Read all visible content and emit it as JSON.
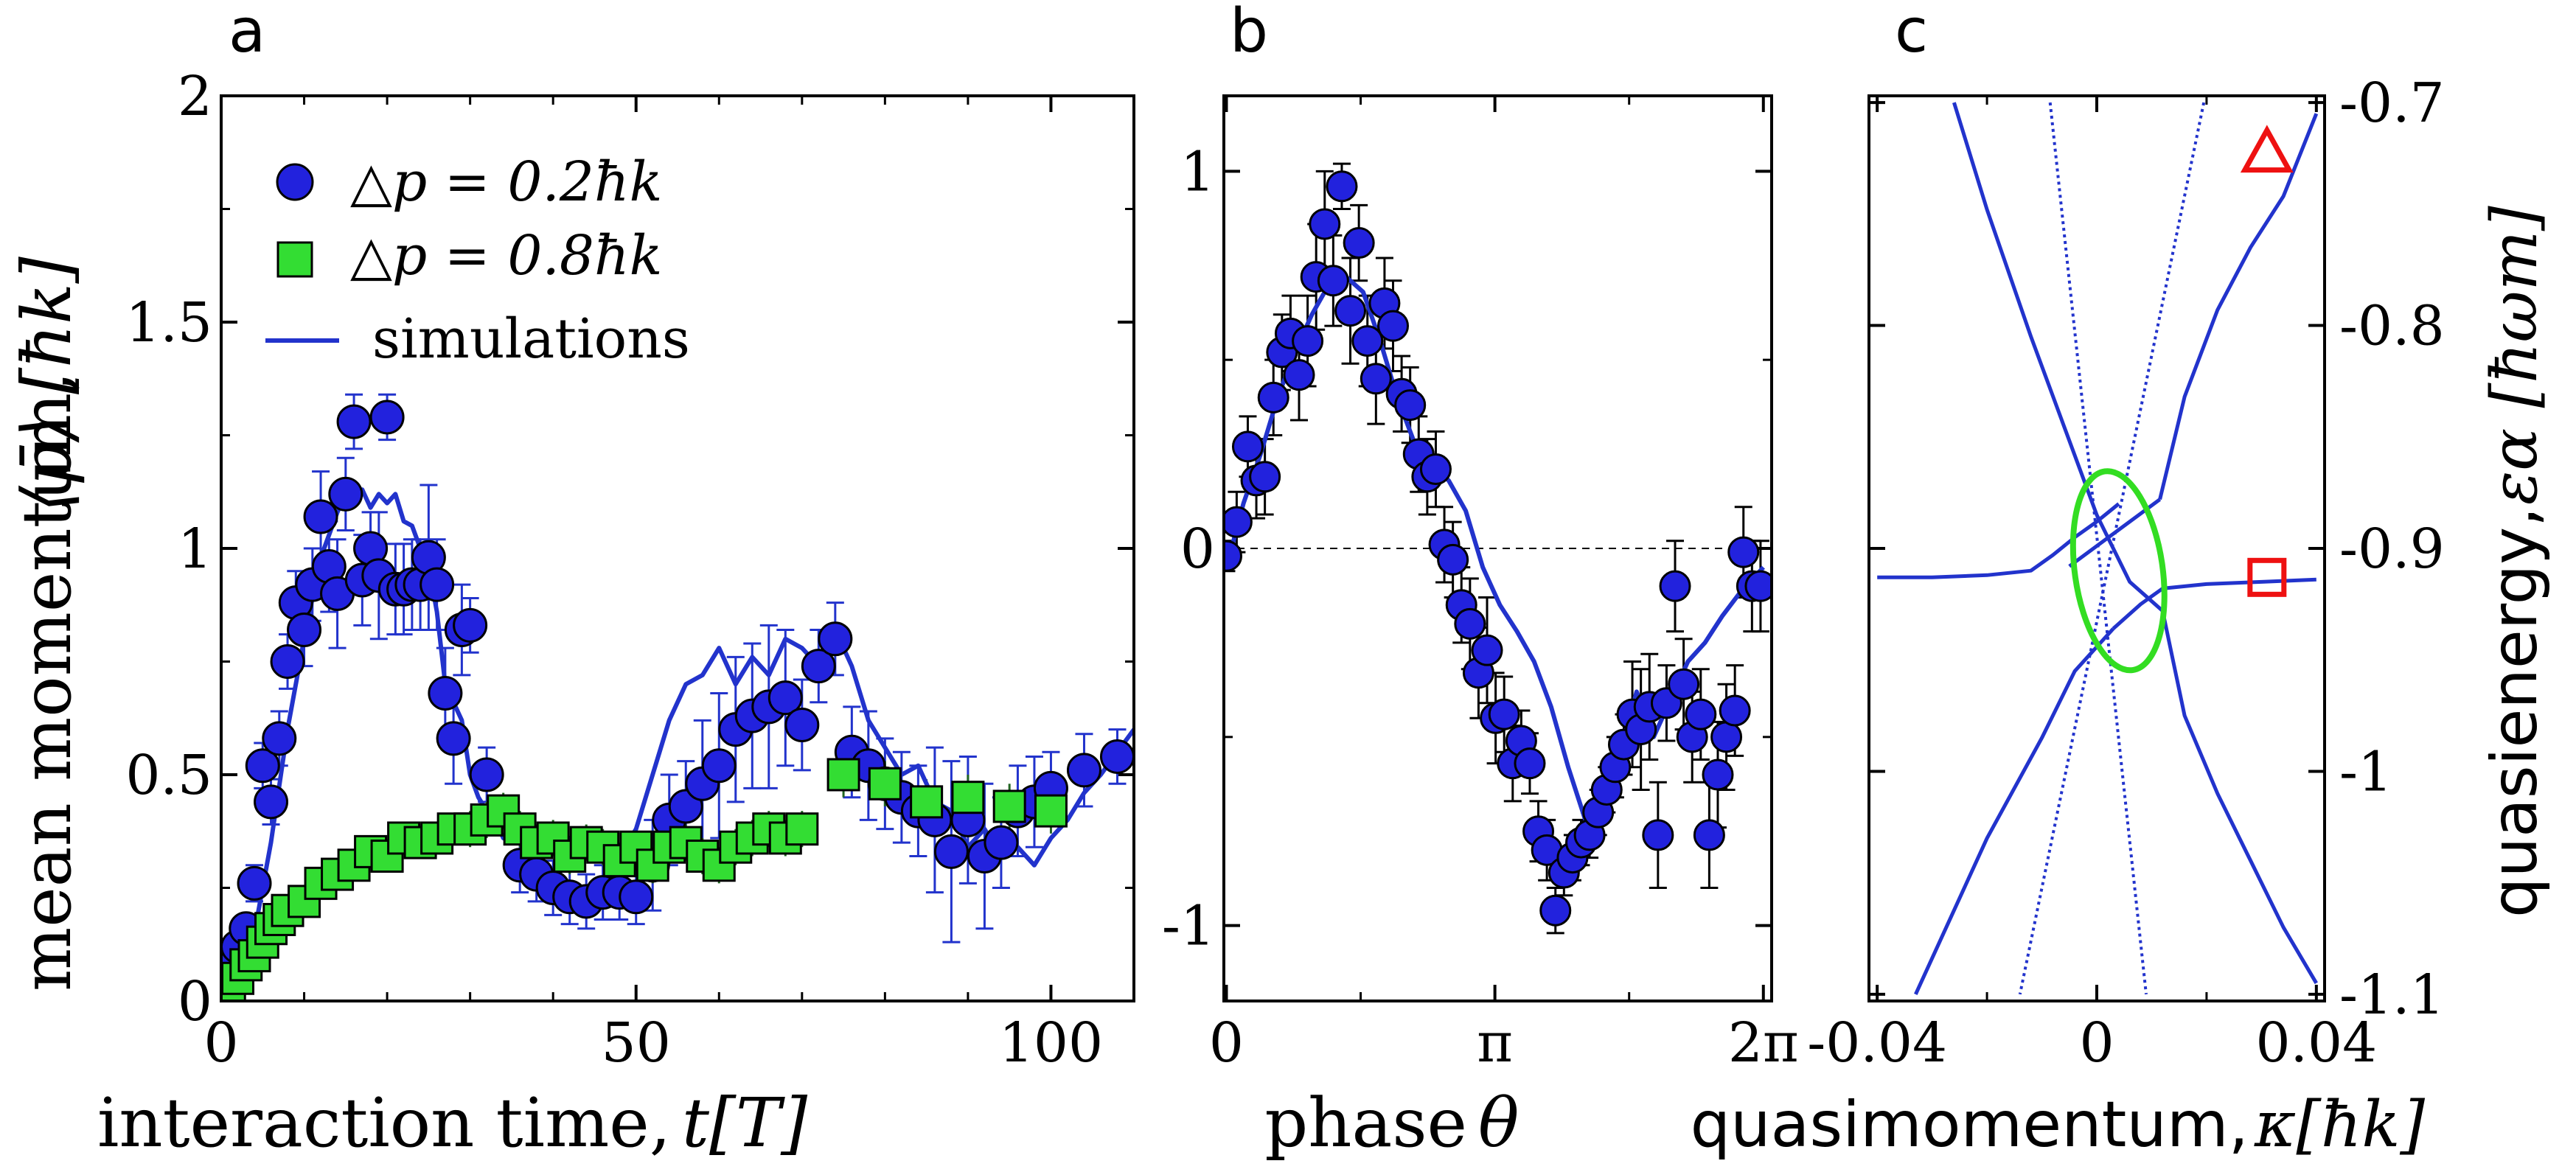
{
  "chart_data": [
    {
      "panel": "a",
      "type": "scatter",
      "panel_label": "a",
      "xlabel": "interaction time,",
      "xlabel_math": "t[T]",
      "ylabel": "mean momentum,",
      "ylabel_math": "⟨p̄⟩ [ħk]",
      "xlim": [
        0,
        110
      ],
      "ylim": [
        0,
        2
      ],
      "xticks": [
        "0",
        "50",
        "100"
      ],
      "yticks": [
        "0",
        "0.5",
        "1",
        "1.5",
        "2"
      ],
      "legend": [
        "△p = 0.2ħk",
        "△p = 0.8ħk",
        "simulations"
      ],
      "legend_position": "top-left",
      "colors": {
        "blue_marker": "#2222dd",
        "green_marker": "#33dd33",
        "line": "#2233cc"
      },
      "series": [
        {
          "name": "△p = 0.2ħk",
          "marker": "circle",
          "x": [
            0,
            1,
            2,
            3,
            4,
            5,
            6,
            7,
            8,
            9,
            10,
            11,
            12,
            13,
            14,
            15,
            16,
            17,
            18,
            19,
            20,
            21,
            22,
            23,
            24,
            25,
            26,
            27,
            28,
            29,
            30,
            32,
            36,
            38,
            40,
            42,
            44,
            46,
            48,
            50,
            52,
            54,
            56,
            58,
            60,
            62,
            64,
            66,
            68,
            70,
            72,
            74,
            76,
            78,
            80,
            82,
            84,
            86,
            88,
            90,
            92,
            94,
            96,
            98,
            100,
            104,
            108
          ],
          "y": [
            0.02,
            0.08,
            0.12,
            0.16,
            0.26,
            0.52,
            0.44,
            0.58,
            0.75,
            0.88,
            0.82,
            0.92,
            1.07,
            0.96,
            0.9,
            1.12,
            1.28,
            0.93,
            1.0,
            0.94,
            1.29,
            0.91,
            0.91,
            0.92,
            0.92,
            0.98,
            0.92,
            0.68,
            0.58,
            0.82,
            0.83,
            0.5,
            0.3,
            0.28,
            0.25,
            0.23,
            0.22,
            0.24,
            0.24,
            0.23,
            0.3,
            0.4,
            0.43,
            0.48,
            0.52,
            0.6,
            0.63,
            0.65,
            0.67,
            0.61,
            0.74,
            0.8,
            0.55,
            0.52,
            0.48,
            0.45,
            0.42,
            0.4,
            0.33,
            0.4,
            0.32,
            0.35,
            0.42,
            0.44,
            0.47,
            0.51,
            0.54
          ],
          "yerr": [
            0.02,
            0.03,
            0.03,
            0.03,
            0.04,
            0.05,
            0.05,
            0.06,
            0.06,
            0.07,
            0.08,
            0.08,
            0.1,
            0.1,
            0.12,
            0.08,
            0.06,
            0.1,
            0.08,
            0.14,
            0.05,
            0.1,
            0.1,
            0.1,
            0.1,
            0.16,
            0.1,
            0.1,
            0.1,
            0.1,
            0.06,
            0.06,
            0.06,
            0.06,
            0.06,
            0.06,
            0.06,
            0.06,
            0.06,
            0.06,
            0.1,
            0.1,
            0.1,
            0.14,
            0.16,
            0.16,
            0.16,
            0.18,
            0.15,
            0.1,
            0.08,
            0.08,
            0.1,
            0.12,
            0.1,
            0.1,
            0.1,
            0.16,
            0.2,
            0.14,
            0.16,
            0.1,
            0.1,
            0.1,
            0.08,
            0.08,
            0.06
          ]
        },
        {
          "name": "△p = 0.8ħk",
          "marker": "square",
          "x": [
            0,
            1,
            2,
            3,
            4,
            5,
            6,
            7,
            8,
            10,
            12,
            14,
            16,
            18,
            20,
            22,
            24,
            26,
            28,
            30,
            32,
            34,
            36,
            38,
            40,
            42,
            44,
            46,
            48,
            50,
            52,
            54,
            56,
            58,
            60,
            62,
            64,
            66,
            68,
            70,
            75,
            80,
            85,
            90,
            95,
            100
          ],
          "y": [
            0.0,
            0.02,
            0.05,
            0.08,
            0.1,
            0.13,
            0.16,
            0.18,
            0.2,
            0.22,
            0.26,
            0.28,
            0.3,
            0.33,
            0.32,
            0.36,
            0.35,
            0.36,
            0.38,
            0.38,
            0.4,
            0.42,
            0.38,
            0.35,
            0.36,
            0.32,
            0.35,
            0.34,
            0.31,
            0.34,
            0.3,
            0.34,
            0.35,
            0.32,
            0.3,
            0.34,
            0.36,
            0.38,
            0.36,
            0.38,
            0.5,
            0.48,
            0.44,
            0.45,
            0.43,
            0.42
          ],
          "yerr": [
            0.02,
            0.02,
            0.02,
            0.02,
            0.02,
            0.02,
            0.03,
            0.03,
            0.03,
            0.03,
            0.03,
            0.03,
            0.03,
            0.03,
            0.03,
            0.03,
            0.03,
            0.03,
            0.03,
            0.04,
            0.04,
            0.04,
            0.04,
            0.04,
            0.04,
            0.04,
            0.04,
            0.04,
            0.04,
            0.04,
            0.04,
            0.04,
            0.04,
            0.04,
            0.04,
            0.04,
            0.04,
            0.04,
            0.04,
            0.04,
            0.05,
            0.05,
            0.05,
            0.05,
            0.05,
            0.05
          ]
        },
        {
          "name": "simulations",
          "type": "line",
          "x": [
            0,
            2,
            4,
            6,
            8,
            10,
            12,
            14,
            15,
            16,
            17,
            18,
            19,
            20,
            21,
            22,
            23,
            24,
            25,
            26,
            27,
            28,
            29,
            30,
            31,
            32,
            33,
            34,
            35,
            36,
            37,
            38,
            40,
            42,
            44,
            46,
            48,
            50,
            52,
            54,
            56,
            58,
            60,
            62,
            64,
            66,
            68,
            70,
            72,
            74,
            76,
            78,
            80,
            82,
            84,
            86,
            88,
            90,
            92,
            94,
            96,
            98,
            100,
            102,
            104,
            106,
            108,
            110
          ],
          "y": [
            0.0,
            0.05,
            0.15,
            0.35,
            0.6,
            0.8,
            0.98,
            1.08,
            1.12,
            1.1,
            1.13,
            1.09,
            1.12,
            1.1,
            1.12,
            1.06,
            1.05,
            1.0,
            0.96,
            0.86,
            0.7,
            0.66,
            0.62,
            0.5,
            0.45,
            0.42,
            0.4,
            0.36,
            0.35,
            0.38,
            0.34,
            0.3,
            0.28,
            0.36,
            0.35,
            0.34,
            0.32,
            0.38,
            0.5,
            0.62,
            0.7,
            0.72,
            0.78,
            0.7,
            0.76,
            0.72,
            0.8,
            0.78,
            0.74,
            0.82,
            0.74,
            0.62,
            0.56,
            0.5,
            0.52,
            0.44,
            0.42,
            0.34,
            0.38,
            0.32,
            0.34,
            0.3,
            0.36,
            0.4,
            0.46,
            0.5,
            0.55,
            0.6
          ]
        }
      ]
    },
    {
      "panel": "b",
      "type": "scatter",
      "panel_label": "b",
      "xlabel": "phase",
      "xlabel_math": "θ",
      "xlim": [
        0,
        6.2832
      ],
      "ylim": [
        -1.2,
        1.2
      ],
      "xticks": [
        "0",
        "π",
        "2π"
      ],
      "yticks": [
        "-1",
        "0",
        "1"
      ],
      "dashed_zero_line": true,
      "series": [
        {
          "name": "data",
          "marker": "circle",
          "x": [
            0.0,
            0.12,
            0.25,
            0.35,
            0.45,
            0.55,
            0.65,
            0.75,
            0.85,
            0.95,
            1.05,
            1.15,
            1.25,
            1.35,
            1.45,
            1.55,
            1.65,
            1.75,
            1.85,
            1.95,
            2.05,
            2.15,
            2.25,
            2.35,
            2.45,
            2.55,
            2.65,
            2.75,
            2.85,
            2.95,
            3.05,
            3.15,
            3.25,
            3.35,
            3.45,
            3.55,
            3.65,
            3.75,
            3.85,
            3.95,
            4.05,
            4.15,
            4.25,
            4.35,
            4.45,
            4.55,
            4.65,
            4.75,
            4.85,
            4.95,
            5.05,
            5.15,
            5.25,
            5.35,
            5.45,
            5.55,
            5.65,
            5.75,
            5.85,
            5.95,
            6.05,
            6.15,
            6.25
          ],
          "y": [
            -0.02,
            0.07,
            0.27,
            0.18,
            0.19,
            0.4,
            0.52,
            0.57,
            0.46,
            0.55,
            0.72,
            0.86,
            0.71,
            0.96,
            0.63,
            0.81,
            0.55,
            0.45,
            0.65,
            0.59,
            0.41,
            0.38,
            0.25,
            0.19,
            0.21,
            0.01,
            -0.03,
            -0.15,
            -0.2,
            -0.33,
            -0.27,
            -0.45,
            -0.44,
            -0.57,
            -0.51,
            -0.57,
            -0.75,
            -0.8,
            -0.96,
            -0.86,
            -0.82,
            -0.78,
            -0.76,
            -0.7,
            -0.64,
            -0.58,
            -0.52,
            -0.44,
            -0.48,
            -0.42,
            -0.76,
            -0.41,
            -0.1,
            -0.36,
            -0.5,
            -0.44,
            -0.76,
            -0.6,
            -0.5,
            -0.43,
            -0.01,
            -0.1,
            -0.1
          ],
          "yerr": [
            0.04,
            0.08,
            0.08,
            0.1,
            0.1,
            0.1,
            0.1,
            0.1,
            0.12,
            0.12,
            0.14,
            0.14,
            0.12,
            0.06,
            0.14,
            0.1,
            0.12,
            0.12,
            0.12,
            0.12,
            0.1,
            0.1,
            0.1,
            0.1,
            0.1,
            0.1,
            0.1,
            0.1,
            0.12,
            0.12,
            0.14,
            0.12,
            0.1,
            0.1,
            0.08,
            0.08,
            0.08,
            0.08,
            0.06,
            0.06,
            0.06,
            0.06,
            0.06,
            0.06,
            0.06,
            0.08,
            0.08,
            0.14,
            0.16,
            0.14,
            0.14,
            0.1,
            0.12,
            0.12,
            0.12,
            0.12,
            0.14,
            0.14,
            0.14,
            0.12,
            0.12,
            0.12,
            0.12
          ]
        },
        {
          "name": "simulation",
          "type": "line",
          "x": [
            0,
            0.2,
            0.4,
            0.6,
            0.8,
            1.0,
            1.2,
            1.4,
            1.6,
            1.8,
            2.0,
            2.2,
            2.4,
            2.6,
            2.8,
            3.0,
            3.2,
            3.4,
            3.6,
            3.8,
            4.0,
            4.2,
            4.4,
            4.6,
            4.8,
            5.0,
            5.2,
            5.4,
            5.6,
            5.8,
            6.0,
            6.2832
          ],
          "y": [
            -0.05,
            0.12,
            0.25,
            0.4,
            0.52,
            0.62,
            0.7,
            0.72,
            0.68,
            0.55,
            0.4,
            0.28,
            0.22,
            0.18,
            0.1,
            -0.05,
            -0.15,
            -0.22,
            -0.3,
            -0.42,
            -0.58,
            -0.72,
            -0.7,
            -0.55,
            -0.38,
            -0.5,
            -0.4,
            -0.3,
            -0.25,
            -0.18,
            -0.12,
            -0.05
          ]
        }
      ]
    },
    {
      "panel": "c",
      "type": "line",
      "panel_label": "c",
      "xlabel": "quasimomentum,",
      "xlabel_math": "κ[ħk]",
      "ylabel": "quasienergy,",
      "ylabel_math": "εα [ħωm]",
      "xlim": [
        -0.04,
        0.04
      ],
      "ylim": [
        -1.1,
        -0.7
      ],
      "xticks": [
        "-0.04",
        "0",
        "0.04"
      ],
      "yticks": [
        "-0.7",
        "-0.8",
        "-0.9",
        "-1",
        "-1.1"
      ],
      "annotations": [
        {
          "shape": "triangle",
          "color": "#ee1111",
          "x": 0.031,
          "y": -0.723
        },
        {
          "shape": "square",
          "color": "#ee1111",
          "x": 0.031,
          "y": -0.913
        },
        {
          "shape": "ellipse",
          "color": "#33dd22",
          "x": 0.004,
          "y": -0.91,
          "rx": 0.008,
          "ry": 0.045
        }
      ],
      "series": [
        {
          "name": "band-1",
          "x": [
            -0.04,
            -0.03,
            -0.02,
            -0.012,
            -0.008,
            -0.004,
            0,
            0.004
          ],
          "y": [
            -0.913,
            -0.913,
            -0.912,
            -0.91,
            -0.903,
            -0.895,
            -0.888,
            -0.88
          ]
        },
        {
          "name": "band-2",
          "x": [
            -0.026,
            -0.02,
            -0.012,
            -0.006,
            0,
            0.006,
            0.012
          ],
          "y": [
            -0.7,
            -0.748,
            -0.805,
            -0.845,
            -0.885,
            -0.915,
            -0.928
          ]
        },
        {
          "name": "band-3",
          "x": [
            0.012,
            0.016,
            0.022,
            0.028,
            0.034,
            0.04
          ],
          "y": [
            -0.928,
            -0.975,
            -1.01,
            -1.04,
            -1.07,
            -1.095
          ]
        },
        {
          "name": "band-4",
          "x": [
            0.003,
            0.008,
            0.012,
            0.02,
            0.03,
            0.04
          ],
          "y": [
            -0.936,
            -0.925,
            -0.918,
            -0.916,
            -0.915,
            -0.914
          ]
        },
        {
          "name": "band-5",
          "x": [
            -0.033,
            -0.02,
            -0.01,
            -0.004,
            0.003
          ],
          "y": [
            -1.1,
            -1.03,
            -0.985,
            -0.955,
            -0.936
          ]
        },
        {
          "name": "band-6",
          "x": [
            0.0115,
            0.016,
            0.022,
            0.028,
            0.034,
            0.04
          ],
          "y": [
            -0.878,
            -0.832,
            -0.793,
            -0.765,
            -0.742,
            -0.705
          ]
        },
        {
          "name": "band-7",
          "x": [
            -0.005,
            0.0115
          ],
          "y": [
            -0.908,
            -0.878
          ]
        },
        {
          "name": "band-dotted-1",
          "style": "dotted",
          "x": [
            -0.0085,
            0.009
          ],
          "y": [
            -0.7,
            -1.1
          ]
        },
        {
          "name": "band-dotted-2",
          "style": "dotted",
          "x": [
            0.0195,
            -0.014
          ],
          "y": [
            -0.7,
            -1.1
          ]
        }
      ]
    }
  ]
}
